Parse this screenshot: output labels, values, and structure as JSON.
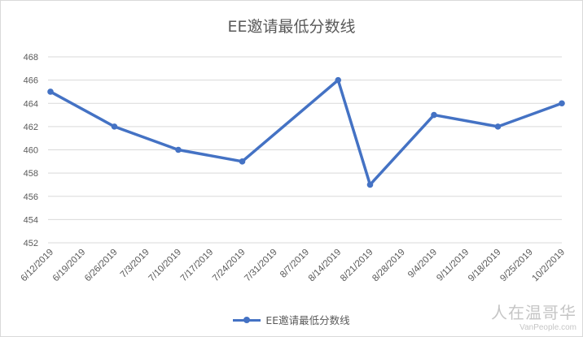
{
  "chart_data": {
    "type": "line",
    "title": "EE邀请最低分数线",
    "xlabel": "",
    "ylabel": "",
    "ylim": [
      452,
      468
    ],
    "yticks": [
      452,
      454,
      456,
      458,
      460,
      462,
      464,
      466,
      468
    ],
    "grid": true,
    "legend_position": "bottom",
    "x": [
      "6/12/2019",
      "6/19/2019",
      "6/26/2019",
      "7/3/2019",
      "7/10/2019",
      "7/17/2019",
      "7/24/2019",
      "7/31/2019",
      "8/7/2019",
      "8/14/2019",
      "8/21/2019",
      "8/28/2019",
      "9/4/2019",
      "9/11/2019",
      "9/18/2019",
      "9/25/2019",
      "10/2/2019"
    ],
    "points": [
      {
        "x": "6/12/2019",
        "y": 465
      },
      {
        "x": "6/26/2019",
        "y": 462
      },
      {
        "x": "7/10/2019",
        "y": 460
      },
      {
        "x": "7/24/2019",
        "y": 459
      },
      {
        "x": "8/14/2019",
        "y": 466
      },
      {
        "x": "8/21/2019",
        "y": 457
      },
      {
        "x": "9/4/2019",
        "y": 463
      },
      {
        "x": "9/18/2019",
        "y": 462
      },
      {
        "x": "10/2/2019",
        "y": 464
      }
    ],
    "series": [
      {
        "name": "EE邀请最低分数线",
        "color": "#4472c4"
      }
    ]
  },
  "watermark": {
    "main": "人在温哥华",
    "sub": "VanPeople.com"
  }
}
